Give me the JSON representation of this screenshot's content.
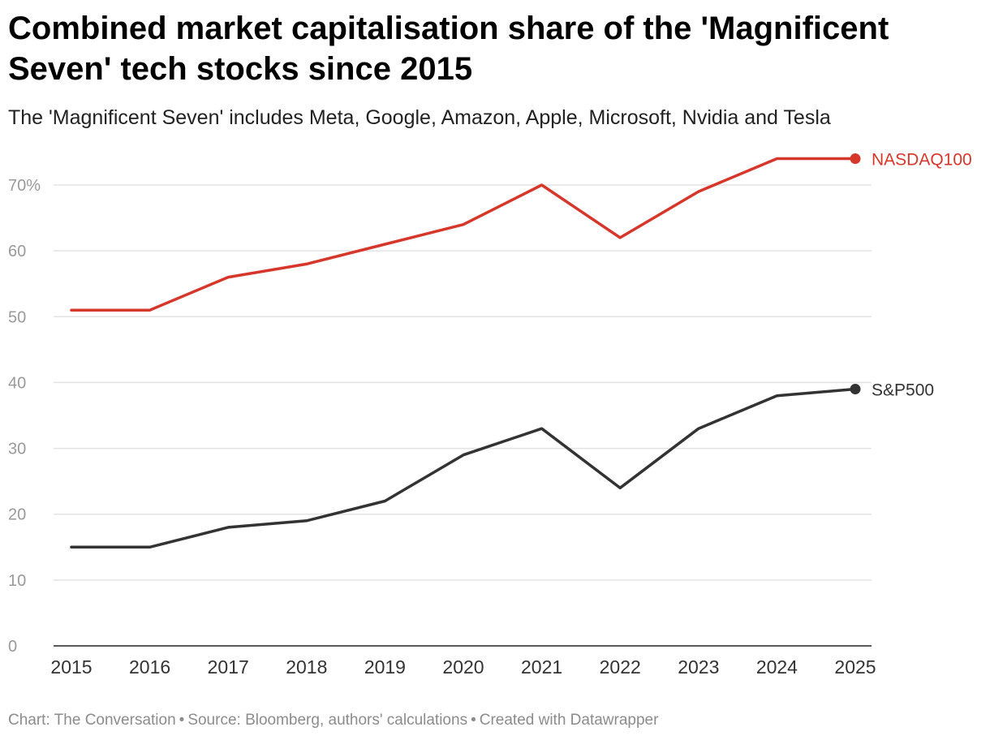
{
  "header": {
    "title": "Combined market capitalisation share of the 'Magnificent Seven' tech stocks since 2015",
    "subtitle": "The 'Magnificent Seven' includes Meta, Google, Amazon, Apple, Microsoft, Nvidia and Tesla"
  },
  "footer": {
    "chart_credit": "Chart: The Conversation",
    "source": "Source: Bloomberg, authors' calculations",
    "created_with": "Created with Datawrapper",
    "separator": "•"
  },
  "chart_data": {
    "type": "line",
    "title": "Combined market capitalisation share of the 'Magnificent Seven' tech stocks since 2015",
    "xlabel": "",
    "ylabel": "",
    "x": [
      "2015",
      "2016",
      "2017",
      "2018",
      "2019",
      "2020",
      "2021",
      "2022",
      "2023",
      "2024",
      "2025"
    ],
    "ylim": [
      0,
      70
    ],
    "yticks": [
      0,
      10,
      20,
      30,
      40,
      50,
      60,
      70
    ],
    "ytick_labels": [
      "0",
      "10",
      "20",
      "30",
      "40",
      "50",
      "60",
      "70%"
    ],
    "grid": true,
    "legend": "direct labels at line ends (right)",
    "series": [
      {
        "name": "NASDAQ100",
        "color": "#d6372b",
        "values": [
          51,
          51,
          56,
          58,
          61,
          64,
          70,
          62,
          69,
          74,
          74
        ]
      },
      {
        "name": "S&P500",
        "color": "#333333",
        "values": [
          15,
          15,
          18,
          19,
          22,
          29,
          33,
          24,
          33,
          38,
          39
        ]
      }
    ]
  }
}
